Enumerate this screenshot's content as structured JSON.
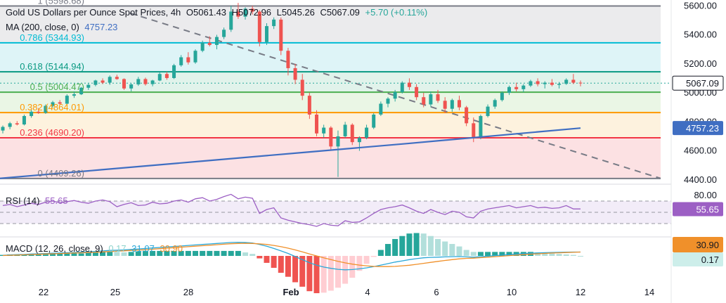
{
  "header": {
    "title": "Gold US Dollars per Ounce Spot Prices, 4h",
    "open_label": "O",
    "open": "5061.43",
    "high_label": "H",
    "high": "5072.96",
    "low_label": "L",
    "low": "5045.26",
    "close_label": "C",
    "close": "5067.09",
    "change": "+5.70 (+0.11%)"
  },
  "colors": {
    "up": "#26a69a",
    "down": "#ef5350",
    "ma": "#3f6ec2",
    "rsi": "#9c5fc4",
    "macd": "#2aa8d8",
    "signal": "#f0902a",
    "bull": "#26a69a",
    "bear": "#ef5350"
  },
  "chart_data": [
    {
      "type": "candlestick",
      "indicator_label": "MA (200, close, 0)",
      "ma_value": "4757.23",
      "last_price": "5067.09",
      "last_price_badge": "5067.09",
      "ma_badge": "4757.23",
      "y_ticks": [
        "5600.00",
        "5400.00",
        "5200.00",
        "5000.00",
        "4800.00",
        "4600.00",
        "4400.00"
      ],
      "x_ticks": [
        "22",
        "25",
        "28",
        "Feb",
        "4",
        "6",
        "10",
        "12",
        "14"
      ],
      "fib_levels": [
        {
          "ratio": "1",
          "value": 5598.68,
          "label": "1 (5598.68)",
          "color": "#787b86",
          "fill": "#e8e8ea"
        },
        {
          "ratio": "0.786",
          "value": 5344.93,
          "label": "0.786 (5344.93)",
          "color": "#00bcd4",
          "fill": "#d8f2f6"
        },
        {
          "ratio": "0.618",
          "value": 5144.94,
          "label": "0.618 (5144.94)",
          "color": "#089981",
          "fill": "#dcf1e8"
        },
        {
          "ratio": "0.5",
          "value": 5004.47,
          "label": "0.5 (5004.47)",
          "color": "#4caf50",
          "fill": "#e6f4e1"
        },
        {
          "ratio": "0.382",
          "value": 4864.0,
          "label": "0.382 (4864.01)",
          "color": "#ff9800",
          "fill": "#fdf0d8"
        },
        {
          "ratio": "0.236",
          "value": 4690.2,
          "label": "0.236 (4690.20)",
          "color": "#f23645",
          "fill": "#fbdcde"
        },
        {
          "ratio": "0",
          "value": 4409.26,
          "label": "0 (4409.26)",
          "color": "#787b86",
          "fill": null
        }
      ],
      "trendline": {
        "start": [
          0,
          5598
        ],
        "end": [
          228,
          4410
        ]
      },
      "ma_series": [
        [
          0,
          4410
        ],
        [
          40,
          4470
        ],
        [
          80,
          4530
        ],
        [
          120,
          4590
        ],
        [
          160,
          4650
        ],
        [
          228,
          4757
        ]
      ],
      "candles": [
        [
          4740,
          4775,
          4720,
          4765
        ],
        [
          4765,
          4800,
          4748,
          4790
        ],
        [
          4790,
          4805,
          4775,
          4782
        ],
        [
          4782,
          4850,
          4775,
          4840
        ],
        [
          4840,
          4885,
          4828,
          4870
        ],
        [
          4870,
          4895,
          4855,
          4862
        ],
        [
          4862,
          4920,
          4855,
          4910
        ],
        [
          4910,
          4945,
          4898,
          4935
        ],
        [
          4935,
          4950,
          4915,
          4925
        ],
        [
          4925,
          4990,
          4920,
          4980
        ],
        [
          4980,
          5010,
          4965,
          4990
        ],
        [
          4990,
          5040,
          4985,
          5035
        ],
        [
          5035,
          5065,
          5020,
          5055
        ],
        [
          5055,
          5090,
          5045,
          5085
        ],
        [
          5085,
          5100,
          5060,
          5070
        ],
        [
          5070,
          5120,
          5055,
          5110
        ],
        [
          5110,
          5125,
          5090,
          5095
        ],
        [
          5095,
          5100,
          5020,
          5030
        ],
        [
          5030,
          5065,
          5010,
          5058
        ],
        [
          5058,
          5110,
          5048,
          5095
        ],
        [
          5095,
          5105,
          5050,
          5060
        ],
        [
          5060,
          5090,
          5045,
          5085
        ],
        [
          5085,
          5140,
          5080,
          5130
        ],
        [
          5130,
          5145,
          5090,
          5102
        ],
        [
          5102,
          5200,
          5095,
          5190
        ],
        [
          5190,
          5260,
          5180,
          5245
        ],
        [
          5245,
          5280,
          5195,
          5210
        ],
        [
          5210,
          5300,
          5200,
          5290
        ],
        [
          5290,
          5360,
          5280,
          5345
        ],
        [
          5345,
          5390,
          5320,
          5330
        ],
        [
          5330,
          5400,
          5300,
          5385
        ],
        [
          5385,
          5450,
          5370,
          5435
        ],
        [
          5435,
          5600,
          5420,
          5560
        ],
        [
          5560,
          5620,
          5510,
          5525
        ],
        [
          5525,
          5590,
          5505,
          5580
        ],
        [
          5580,
          5600,
          5540,
          5560
        ],
        [
          5560,
          5570,
          5320,
          5350
        ],
        [
          5350,
          5480,
          5330,
          5460
        ],
        [
          5460,
          5520,
          5440,
          5505
        ],
        [
          5505,
          5520,
          5260,
          5290
        ],
        [
          5290,
          5310,
          5120,
          5170
        ],
        [
          5170,
          5200,
          5060,
          5090
        ],
        [
          5090,
          5130,
          4950,
          4980
        ],
        [
          4980,
          5000,
          4820,
          4850
        ],
        [
          4850,
          4880,
          4700,
          4720
        ],
        [
          4720,
          4780,
          4690,
          4760
        ],
        [
          4760,
          4770,
          4600,
          4630
        ],
        [
          4630,
          4740,
          4420,
          4700
        ],
        [
          4700,
          4800,
          4690,
          4780
        ],
        [
          4780,
          4790,
          4640,
          4660
        ],
        [
          4660,
          4700,
          4600,
          4690
        ],
        [
          4690,
          4780,
          4680,
          4760
        ],
        [
          4760,
          4860,
          4750,
          4850
        ],
        [
          4850,
          4940,
          4840,
          4925
        ],
        [
          4925,
          4970,
          4900,
          4960
        ],
        [
          4960,
          5020,
          4940,
          5005
        ],
        [
          5005,
          5080,
          4995,
          5070
        ],
        [
          5070,
          5100,
          5020,
          5040
        ],
        [
          5040,
          5060,
          4950,
          4970
        ],
        [
          4970,
          5000,
          4900,
          4920
        ],
        [
          4920,
          5010,
          4905,
          4990
        ],
        [
          4990,
          5020,
          4930,
          4945
        ],
        [
          4945,
          4970,
          4860,
          4890
        ],
        [
          4890,
          4960,
          4870,
          4950
        ],
        [
          4950,
          4980,
          4880,
          4900
        ],
        [
          4900,
          4910,
          4770,
          4790
        ],
        [
          4790,
          4830,
          4660,
          4690
        ],
        [
          4690,
          4850,
          4680,
          4840
        ],
        [
          4840,
          4920,
          4830,
          4905
        ],
        [
          4905,
          4960,
          4890,
          4950
        ],
        [
          4950,
          5010,
          4940,
          5000
        ],
        [
          5000,
          5050,
          4985,
          5040
        ],
        [
          5040,
          5070,
          5010,
          5025
        ],
        [
          5025,
          5060,
          5005,
          5050
        ],
        [
          5050,
          5090,
          5040,
          5080
        ],
        [
          5080,
          5100,
          5045,
          5060
        ],
        [
          5060,
          5080,
          5030,
          5070
        ],
        [
          5070,
          5095,
          5045,
          5055
        ],
        [
          5055,
          5075,
          5030,
          5062
        ],
        [
          5062,
          5100,
          5055,
          5090
        ],
        [
          5090,
          5130,
          5060,
          5070
        ],
        [
          5070,
          5085,
          5045,
          5067
        ]
      ]
    },
    {
      "type": "line",
      "indicator_label": "RSI (14)",
      "value": "55.65",
      "badge": "55.65",
      "y_ticks": [
        "80.00"
      ],
      "upper": 70,
      "lower": 30,
      "mid": 50,
      "values": [
        62,
        64,
        60,
        63,
        66,
        64,
        68,
        70,
        67,
        69,
        71,
        68,
        66,
        70,
        72,
        69,
        60,
        64,
        67,
        62,
        63,
        68,
        65,
        66,
        70,
        72,
        68,
        74,
        76,
        70,
        73,
        78,
        82,
        74,
        77,
        75,
        48,
        55,
        58,
        40,
        36,
        33,
        30,
        28,
        25,
        30,
        27,
        26,
        35,
        32,
        33,
        40,
        48,
        55,
        58,
        60,
        63,
        58,
        52,
        48,
        55,
        50,
        46,
        52,
        50,
        42,
        40,
        52,
        56,
        58,
        60,
        62,
        58,
        60,
        62,
        58,
        59,
        57,
        58,
        62,
        56,
        56
      ]
    },
    {
      "type": "histogram",
      "indicator_label": "MACD (12, 26, close, 9)",
      "hist_value": "0.17",
      "macd_value": "31.07",
      "signal_value": "30.90",
      "signal_badge": "30.90",
      "hist_badge": "0.17",
      "macd": [
        5,
        8,
        10,
        12,
        15,
        17,
        20,
        22,
        24,
        26,
        28,
        30,
        33,
        36,
        40,
        44,
        46,
        48,
        52,
        56,
        60,
        64,
        68,
        72,
        76,
        80,
        84,
        88,
        92,
        96,
        100,
        104,
        108,
        110,
        108,
        104,
        92,
        78,
        60,
        40,
        20,
        -5,
        -30,
        -55,
        -75,
        -90,
        -100,
        -108,
        -112,
        -110,
        -104,
        -96,
        -86,
        -74,
        -62,
        -50,
        -40,
        -30,
        -22,
        -15,
        -12,
        -10,
        -8,
        -6,
        -5,
        -8,
        -10,
        -6,
        -2,
        2,
        6,
        10,
        14,
        18,
        22,
        24,
        26,
        28,
        29,
        30,
        31,
        31
      ],
      "signal": [
        3,
        5,
        7,
        9,
        11,
        13,
        15,
        17,
        19,
        21,
        23,
        25,
        27,
        29,
        32,
        35,
        38,
        41,
        44,
        47,
        50,
        54,
        58,
        62,
        66,
        70,
        74,
        78,
        82,
        86,
        90,
        94,
        98,
        100,
        101,
        100,
        97,
        92,
        84,
        74,
        62,
        48,
        32,
        16,
        0,
        -16,
        -30,
        -44,
        -56,
        -66,
        -74,
        -80,
        -84,
        -86,
        -86,
        -84,
        -80,
        -75,
        -68,
        -60,
        -52,
        -44,
        -37,
        -30,
        -24,
        -20,
        -18,
        -14,
        -10,
        -6,
        -2,
        2,
        6,
        10,
        14,
        17,
        20,
        23,
        25,
        27,
        29,
        31
      ]
    }
  ]
}
